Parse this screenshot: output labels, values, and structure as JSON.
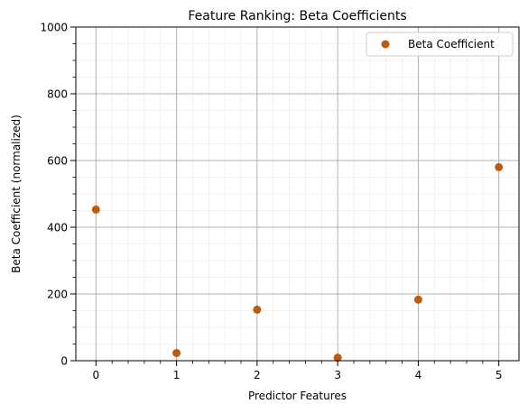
{
  "chart_data": {
    "type": "scatter",
    "title": "Feature Ranking: Beta Coefficients",
    "xlabel": "Predictor Features",
    "ylabel": "Beta Coefficient (normalized)",
    "xlim": [
      -0.25,
      5.25
    ],
    "ylim": [
      0,
      1000
    ],
    "xticks": [
      0,
      1,
      2,
      3,
      4,
      5
    ],
    "yticks": [
      0,
      200,
      400,
      600,
      800,
      1000
    ],
    "grid": true,
    "minor_grid": true,
    "legend_position": "top-right",
    "series": [
      {
        "name": "Beta Coefficient",
        "color": "#BF5B0C",
        "marker": "circle",
        "x": [
          0,
          1,
          2,
          3,
          4,
          5
        ],
        "y": [
          453,
          23,
          153,
          9,
          183,
          580
        ]
      }
    ]
  }
}
